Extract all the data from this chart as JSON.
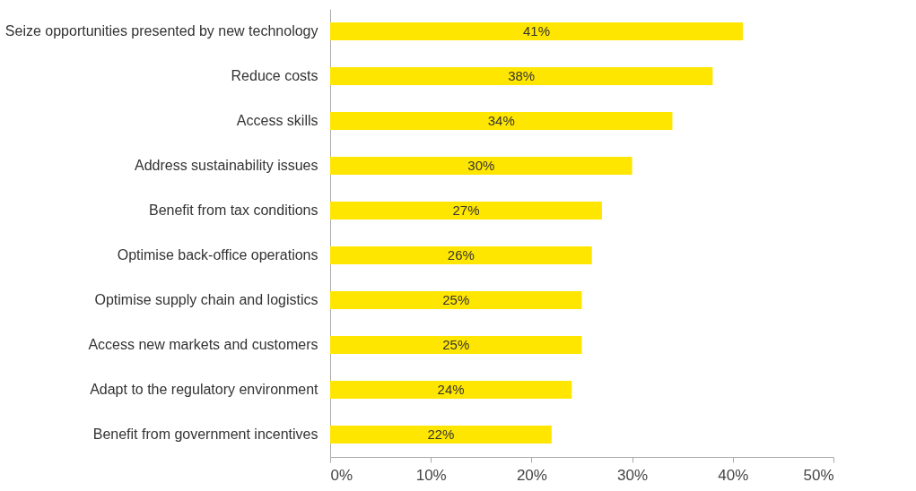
{
  "chart_data": {
    "type": "bar",
    "orientation": "horizontal",
    "categories": [
      "Seize opportunities presented by new technology",
      "Reduce costs",
      "Access skills",
      "Address sustainability issues",
      "Benefit from tax conditions",
      "Optimise back-office operations",
      "Optimise supply chain and logistics",
      "Access new markets and customers",
      "Adapt to the regulatory environment",
      "Benefit from government incentives"
    ],
    "values": [
      41,
      38,
      34,
      30,
      27,
      26,
      25,
      25,
      24,
      22
    ],
    "value_labels": [
      "41%",
      "38%",
      "34%",
      "30%",
      "27%",
      "26%",
      "25%",
      "25%",
      "24%",
      "22%"
    ],
    "color": "#ffe600",
    "xlim": [
      0,
      50
    ],
    "xticks": [
      {
        "value": 0,
        "label": "0%"
      },
      {
        "value": 10,
        "label": "10%"
      },
      {
        "value": 20,
        "label": "20%"
      },
      {
        "value": 30,
        "label": "30%"
      },
      {
        "value": 40,
        "label": "40%"
      },
      {
        "value": 50,
        "label": "50%"
      }
    ],
    "grid": false
  }
}
